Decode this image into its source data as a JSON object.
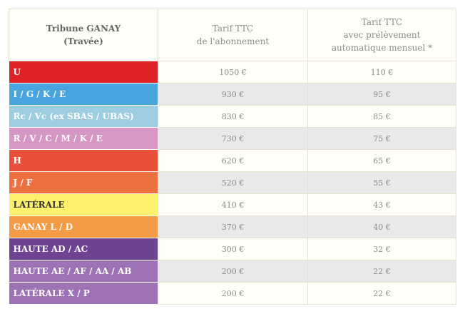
{
  "header": {
    "col1": [
      "Tribune GANAY",
      "(Travée)"
    ],
    "col2": [
      "Tarif TTC",
      "de l'abonnement"
    ],
    "col3": [
      "Tarif TTC",
      "avec prélèvement",
      "automatique mensuel *"
    ]
  },
  "rows": [
    {
      "label": "U",
      "price": "1050 €",
      "monthly": "110 €",
      "color": "#de2328",
      "text_color": "#ffffff"
    },
    {
      "label": "I / G / K / E",
      "price": "930 €",
      "monthly": "95 €",
      "color": "#4aa5de",
      "text_color": "#ffffff"
    },
    {
      "label": "Rc / Vc (ex SBAS / UBAS)",
      "price": "830 €",
      "monthly": "85 €",
      "color": "#9dcde1",
      "text_color": "#ffffff"
    },
    {
      "label": "R / V / C / M / K / E",
      "price": "730 €",
      "monthly": "75 €",
      "color": "#d797c5",
      "text_color": "#ffffff"
    },
    {
      "label": "H",
      "price": "620 €",
      "monthly": "65 €",
      "color": "#e8503a",
      "text_color": "#ffffff"
    },
    {
      "label": "J / F",
      "price": "520 €",
      "monthly": "55 €",
      "color": "#ed7040",
      "text_color": "#ffffff"
    },
    {
      "label": "LATÉRALE",
      "price": "410 €",
      "monthly": "43 €",
      "color": "#fef16d",
      "text_color": "#333333"
    },
    {
      "label": "GANAY L / D",
      "price": "370 €",
      "monthly": "40 €",
      "color": "#f39b47",
      "text_color": "#ffffff"
    },
    {
      "label": "HAUTE AD / AC",
      "price": "300 €",
      "monthly": "32 €",
      "color": "#6e4492",
      "text_color": "#ffffff"
    },
    {
      "label": "HAUTE AE / AF / AA / AB",
      "price": "200 €",
      "monthly": "22 €",
      "color": "#9d73b5",
      "text_color": "#ffffff"
    },
    {
      "label": "LATÉRALE X / P",
      "price": "200 €",
      "monthly": "22 €",
      "color": "#9d73b5",
      "text_color": "#ffffff"
    }
  ]
}
